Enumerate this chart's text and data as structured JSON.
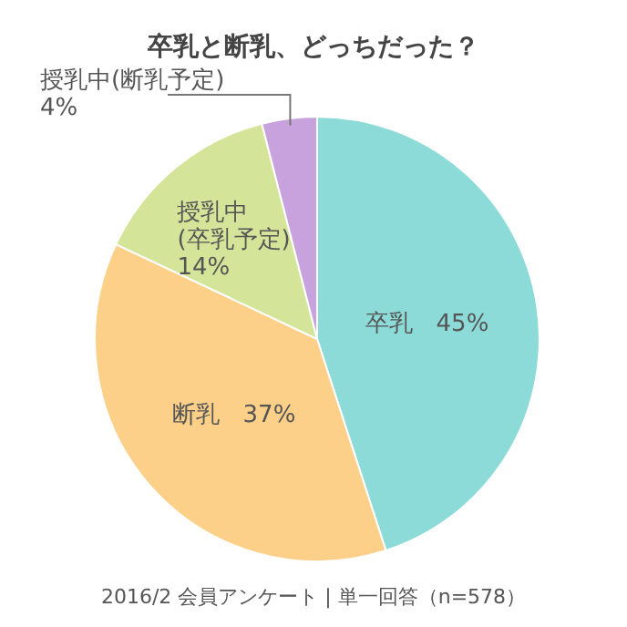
{
  "chart_data": {
    "type": "pie",
    "title": "卒乳と断乳、どっちだった？",
    "categories": [
      "卒乳",
      "断乳",
      "授乳中\n(卒乳予定)",
      "授乳中(断乳予定)"
    ],
    "values": [
      45,
      37,
      14,
      4
    ],
    "value_labels": [
      "45%",
      "37%",
      "14%",
      "4%"
    ],
    "colors": [
      "#8ddbd8",
      "#fdd08a",
      "#d4e59a",
      "#c8a2dc"
    ],
    "annotations": [
      "2016/2 会員アンケート | 単一回答（n=578）"
    ]
  }
}
